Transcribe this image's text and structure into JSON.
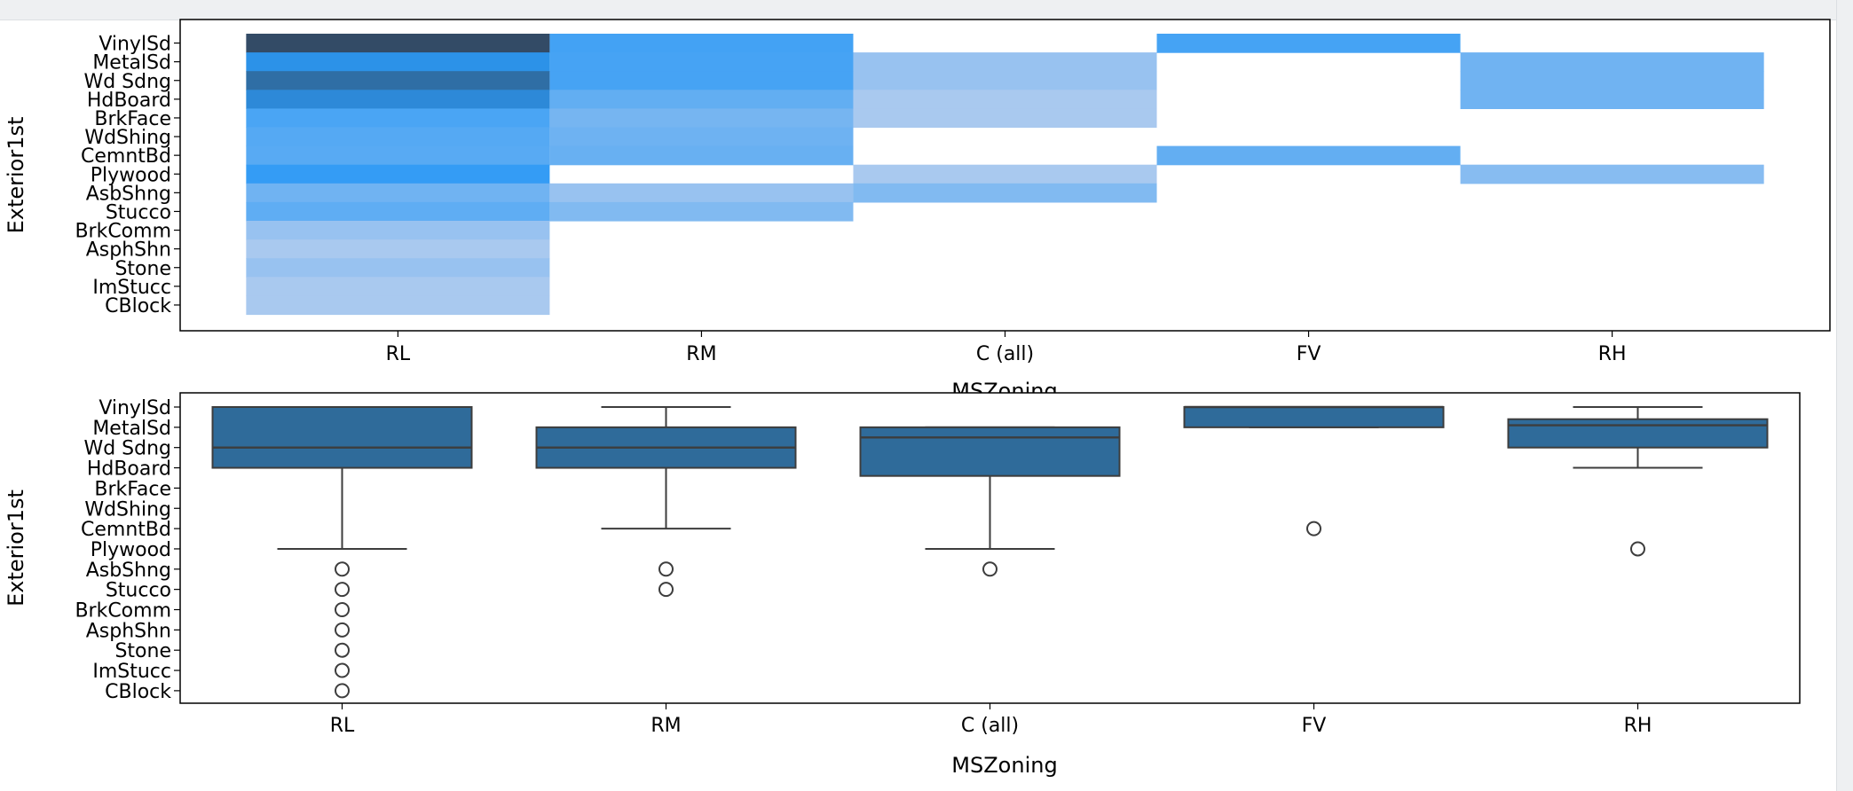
{
  "chart_data": [
    {
      "type": "heatmap",
      "xlabel": "MSZoning",
      "ylabel": "Exterior1st",
      "categories": [
        "RL",
        "RM",
        "C (all)",
        "FV",
        "RH"
      ],
      "y_categories": [
        "VinylSd",
        "MetalSd",
        "Wd Sdng",
        "HdBoard",
        "BrkFace",
        "WdShing",
        "CemntBd",
        "Plywood",
        "AsbShng",
        "Stucco",
        "BrkComm",
        "AsphShn",
        "Stone",
        "ImStucc",
        "CBlock"
      ],
      "counts": [
        [
          410,
          63,
          0,
          59,
          0
        ],
        [
          180,
          55,
          2,
          0,
          10
        ],
        [
          275,
          55,
          2,
          0,
          10
        ],
        [
          200,
          18,
          1,
          0,
          10
        ],
        [
          47,
          8,
          1,
          0,
          0
        ],
        [
          30,
          11,
          0,
          0,
          0
        ],
        [
          27,
          14,
          0,
          17,
          0
        ],
        [
          115,
          0,
          1,
          0,
          4
        ],
        [
          10,
          2,
          5,
          0,
          0
        ],
        [
          20,
          5,
          0,
          0,
          0
        ],
        [
          2,
          0,
          0,
          0,
          0
        ],
        [
          1,
          0,
          0,
          0,
          0
        ],
        [
          2,
          0,
          0,
          0,
          0
        ],
        [
          1,
          0,
          0,
          0,
          0
        ],
        [
          1,
          0,
          0,
          0,
          0
        ]
      ],
      "color_low": "#a9c9ef",
      "color_mid": "#2b99f5",
      "color_high": "#334b66"
    },
    {
      "type": "box",
      "xlabel": "MSZoning",
      "ylabel": "Exterior1st",
      "categories": [
        "RL",
        "RM",
        "C (all)",
        "FV",
        "RH"
      ],
      "y_categories": [
        "VinylSd",
        "MetalSd",
        "Wd Sdng",
        "HdBoard",
        "BrkFace",
        "WdShing",
        "CemntBd",
        "Plywood",
        "AsbShng",
        "Stucco",
        "BrkComm",
        "AsphShn",
        "Stone",
        "ImStucc",
        "CBlock"
      ],
      "boxes": [
        {
          "whisker_low": 0,
          "q1": 0,
          "median": 2,
          "q3": 3,
          "whisker_high": 7,
          "outliers": [
            8,
            9,
            10,
            11,
            12,
            13,
            14
          ]
        },
        {
          "whisker_low": 0,
          "q1": 1,
          "median": 2,
          "q3": 3,
          "whisker_high": 6,
          "outliers": [
            8,
            9
          ]
        },
        {
          "whisker_low": 1,
          "q1": 1,
          "median": 1.5,
          "q3": 3.4,
          "whisker_high": 7,
          "outliers": [
            8
          ]
        },
        {
          "whisker_low": 0,
          "q1": 0,
          "median": 0,
          "q3": 1,
          "whisker_high": 1,
          "outliers": [
            6
          ]
        },
        {
          "whisker_low": 0,
          "q1": 0.6,
          "median": 0.9,
          "q3": 2,
          "whisker_high": 3,
          "outliers": [
            7
          ]
        }
      ],
      "box_color": "#2f6b9a"
    }
  ]
}
